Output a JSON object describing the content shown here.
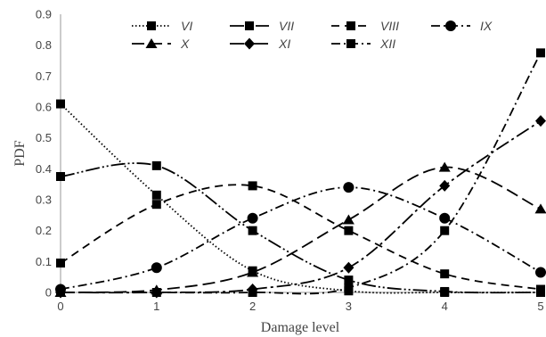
{
  "chart_data": {
    "type": "line",
    "title": "",
    "xlabel": "Damage level",
    "ylabel": "PDF",
    "x": [
      0,
      1,
      2,
      3,
      4,
      5
    ],
    "xlim": [
      0,
      5
    ],
    "ylim": [
      0,
      0.9
    ],
    "x_ticks": [
      "0",
      "1",
      "2",
      "3",
      "4",
      "5"
    ],
    "y_ticks": [
      "0",
      "0.1",
      "0.2",
      "0.3",
      "0.4",
      "0.5",
      "0.6",
      "0.7",
      "0.8",
      "0.9"
    ],
    "grid": false,
    "legend_position": "top",
    "color": "#000000",
    "series": [
      {
        "name": "VI",
        "values": [
          0.61,
          0.315,
          0.07,
          0.005,
          0.0,
          0.0
        ],
        "dash": "dotted",
        "marker": "square"
      },
      {
        "name": "VII",
        "values": [
          0.375,
          0.41,
          0.2,
          0.04,
          0.003,
          0.0
        ],
        "dash": "long-dash-dot-dot",
        "marker": "square"
      },
      {
        "name": "VIII",
        "values": [
          0.095,
          0.285,
          0.345,
          0.2,
          0.06,
          0.01
        ],
        "dash": "dashed",
        "marker": "square"
      },
      {
        "name": "IX",
        "values": [
          0.01,
          0.08,
          0.24,
          0.34,
          0.24,
          0.065
        ],
        "dash": "dash-dot",
        "marker": "circle"
      },
      {
        "name": "X",
        "values": [
          0.0,
          0.008,
          0.065,
          0.235,
          0.405,
          0.27
        ],
        "dash": "long-dash",
        "marker": "triangle"
      },
      {
        "name": "XI",
        "values": [
          0.0,
          0.0,
          0.01,
          0.08,
          0.345,
          0.555
        ],
        "dash": "long-dash-dot",
        "marker": "diamond"
      },
      {
        "name": "XII",
        "values": [
          0.0,
          0.0,
          0.0,
          0.015,
          0.2,
          0.775
        ],
        "dash": "dash-dot",
        "marker": "square"
      }
    ]
  }
}
